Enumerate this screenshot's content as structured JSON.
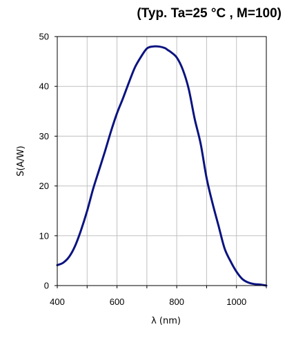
{
  "header": {
    "conditions": "(Typ. Ta=25 °C , M=100)"
  },
  "chart_data": {
    "type": "line",
    "title": "",
    "xlabel": "λ (nm)",
    "ylabel": "S(A/W)",
    "xlim": [
      400,
      1100
    ],
    "ylim": [
      0,
      50
    ],
    "x_ticks": [
      400,
      600,
      800,
      1000
    ],
    "y_ticks": [
      0,
      10,
      20,
      30,
      40,
      50
    ],
    "x_grid_step": 100,
    "grid": true,
    "legend": "none",
    "series": [
      {
        "color": "#0a1380",
        "x": [
          400,
          420,
          440,
          460,
          480,
          500,
          520,
          540,
          560,
          580,
          600,
          620,
          640,
          660,
          680,
          700,
          720,
          740,
          760,
          770,
          780,
          800,
          820,
          840,
          860,
          880,
          900,
          920,
          940,
          960,
          980,
          1000,
          1020,
          1040,
          1060,
          1080,
          1100
        ],
        "values": [
          4.1,
          4.6,
          5.8,
          8.0,
          11.2,
          15.0,
          19.4,
          23.2,
          27.0,
          31.0,
          34.6,
          37.6,
          40.8,
          43.8,
          45.9,
          47.6,
          48.0,
          48.0,
          47.7,
          47.3,
          46.9,
          45.8,
          43.4,
          39.5,
          33.5,
          28.5,
          21.6,
          16.5,
          12.0,
          7.5,
          4.9,
          2.8,
          1.3,
          0.6,
          0.3,
          0.2,
          0.0
        ]
      }
    ]
  }
}
